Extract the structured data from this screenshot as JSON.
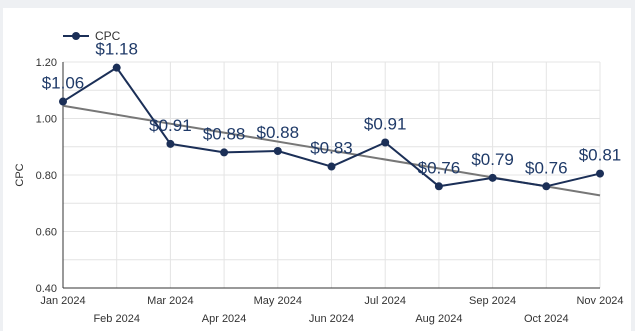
{
  "chart_data": {
    "type": "line",
    "categories": [
      "Jan 2024",
      "Feb 2024",
      "Mar 2024",
      "Apr 2024",
      "May 2024",
      "Jun 2024",
      "Jul 2024",
      "Aug 2024",
      "Sep 2024",
      "Oct 2024",
      "Nov 2024"
    ],
    "series": [
      {
        "name": "CPC",
        "values": [
          1.06,
          1.18,
          0.91,
          0.88,
          0.885,
          0.83,
          0.915,
          0.76,
          0.79,
          0.76,
          0.805
        ],
        "labels": [
          "$1.06",
          "$1.18",
          "$0.91",
          "$0.88",
          "$0.88",
          "$0.83",
          "$0.91",
          "$0.76",
          "$0.79",
          "$0.76",
          "$0.81"
        ],
        "color": "#1b2f57"
      }
    ],
    "trendline": {
      "start": 1.045,
      "end": 0.728,
      "color": "#777777"
    },
    "ylabel": "CPC",
    "ylim": [
      0.4,
      1.2
    ],
    "yticks": [
      "0.40",
      "0.60",
      "0.80",
      "1.00",
      "1.20"
    ],
    "legend": "top-left",
    "grid": true
  }
}
